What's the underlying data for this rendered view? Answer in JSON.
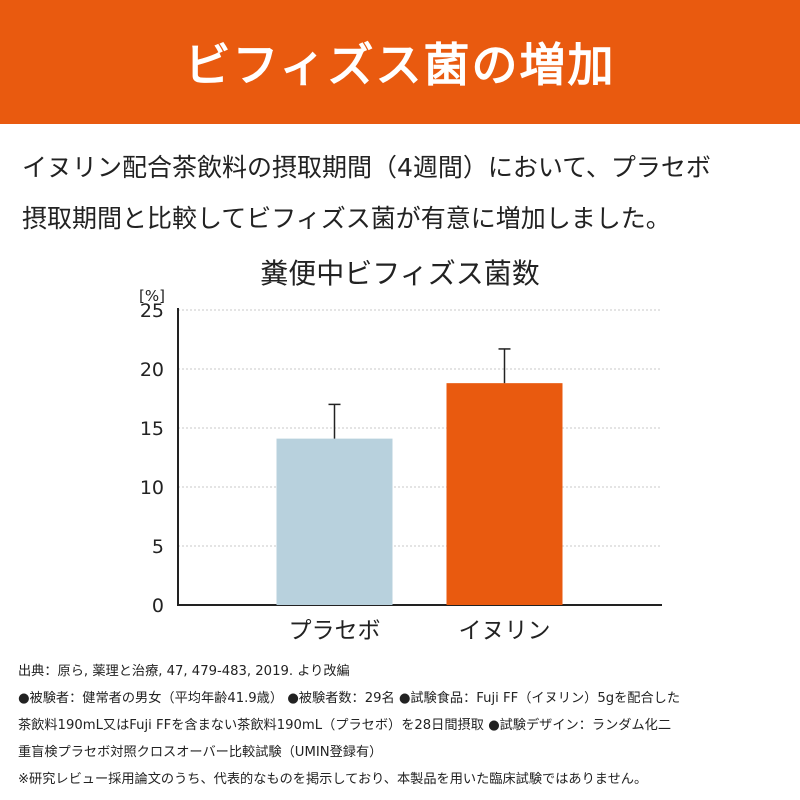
{
  "banner": {
    "title": "ビフィズス菌の増加"
  },
  "lead": {
    "line1": "イヌリン配合茶飲料の摂取期間（4週間）において、プラセボ",
    "line2": "摂取期間と比較してビフィズス菌が有意に増加しました。"
  },
  "chart_data": {
    "type": "bar",
    "title": "糞便中ビフィズス菌数",
    "ylabel": "[%]",
    "xlabel": "",
    "ylim": [
      0,
      25
    ],
    "yticks": [
      "0",
      "5",
      "10",
      "15",
      "20",
      "25"
    ],
    "grid": true,
    "categories": [
      "プラセボ",
      "イヌリン"
    ],
    "values": [
      14.1,
      18.8
    ],
    "error_upper": [
      17.0,
      21.7
    ],
    "colors": [
      "#b8d1dd",
      "#e95a0f"
    ]
  },
  "notes": {
    "line1": "出典：原ら, 薬理と治療, 47, 479-483, 2019. より改編",
    "line2": "●被験者：健常者の男女（平均年齢41.9歳） ●被験者数：29名 ●試験食品：Fuji FF（イヌリン）5gを配合した",
    "line3": "茶飲料190mL又はFuji FFを含まない茶飲料190mL（プラセボ）を28日間摂取 ●試験デザイン：ランダム化二",
    "line4": "重盲検プラセボ対照クロスオーバー比較試験（UMIN登録有）",
    "line5": "※研究レビュー採用論文のうち、代表的なものを掲示しており、本製品を用いた臨床試験ではありません。"
  }
}
